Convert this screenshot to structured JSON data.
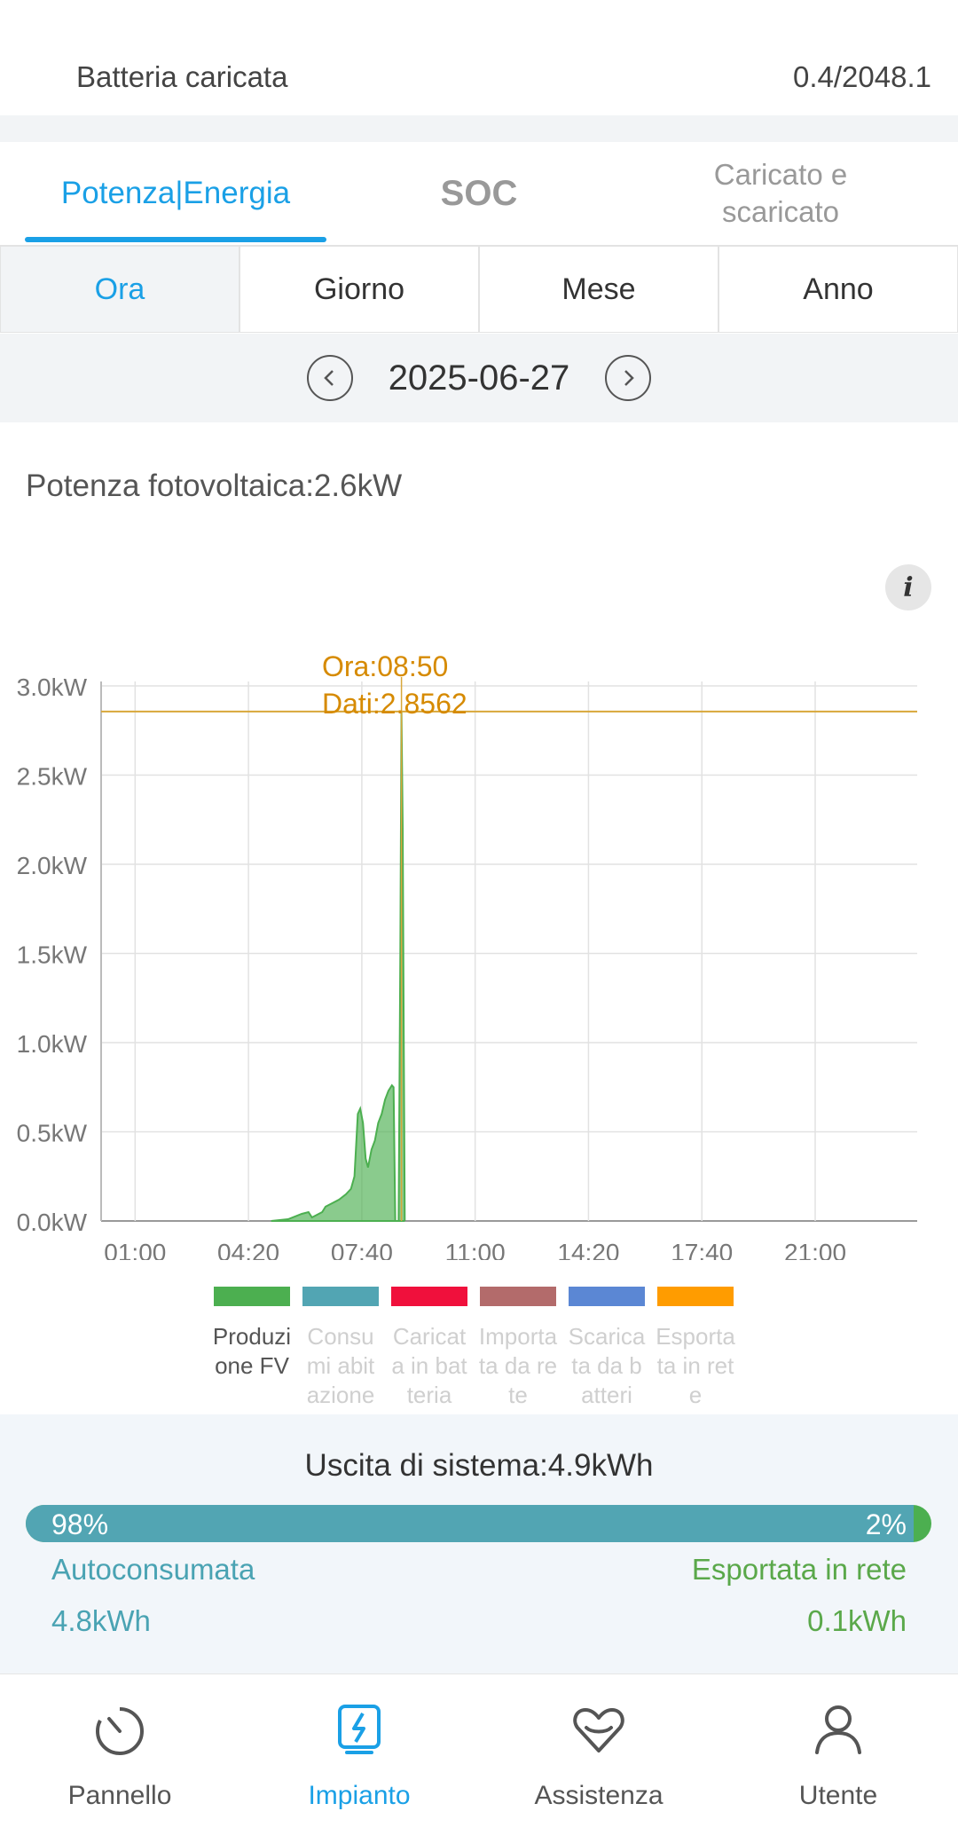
{
  "battery": {
    "label": "Batteria caricata",
    "value": "0.4/2048.1"
  },
  "tabs": [
    {
      "label": "Potenza|Energia",
      "active": true
    },
    {
      "label": "SOC",
      "active": false
    },
    {
      "label": "Caricato e scaricato",
      "active": false
    }
  ],
  "period_tabs": [
    {
      "label": "Ora",
      "active": true
    },
    {
      "label": "Giorno",
      "active": false
    },
    {
      "label": "Mese",
      "active": false
    },
    {
      "label": "Anno",
      "active": false
    }
  ],
  "date": {
    "value": "2025-06-27",
    "prev_icon": "chevron-left-icon",
    "next_icon": "chevron-right-icon"
  },
  "pv_power": "Potenza fotovoltaica:2.6kW",
  "info_icon": "i",
  "chart_data": {
    "type": "area",
    "y_tick_labels": [
      "0.0kW",
      "0.5kW",
      "1.0kW",
      "1.5kW",
      "2.0kW",
      "2.5kW",
      "3.0kW"
    ],
    "x_tick_labels": [
      "01:00",
      "04:20",
      "07:40",
      "11:00",
      "14:20",
      "17:40",
      "21:00"
    ],
    "ylim": [
      0,
      3.0
    ],
    "xlim_hours": [
      0,
      24
    ],
    "tooltip": {
      "line1": "Ora:08:50",
      "line2": "Dati:2.8562",
      "x_hour": 8.833,
      "y": 2.8562
    },
    "series": [
      {
        "name": "Produzione FV",
        "color": "#4caf50",
        "points": [
          [
            5.0,
            0.0
          ],
          [
            5.5,
            0.01
          ],
          [
            5.9,
            0.04
          ],
          [
            6.1,
            0.05
          ],
          [
            6.2,
            0.02
          ],
          [
            6.5,
            0.05
          ],
          [
            6.6,
            0.08
          ],
          [
            6.8,
            0.1
          ],
          [
            7.0,
            0.12
          ],
          [
            7.2,
            0.15
          ],
          [
            7.35,
            0.18
          ],
          [
            7.45,
            0.25
          ],
          [
            7.55,
            0.6
          ],
          [
            7.62,
            0.63
          ],
          [
            7.7,
            0.55
          ],
          [
            7.78,
            0.35
          ],
          [
            7.85,
            0.3
          ],
          [
            7.95,
            0.4
          ],
          [
            8.05,
            0.45
          ],
          [
            8.15,
            0.55
          ],
          [
            8.25,
            0.6
          ],
          [
            8.35,
            0.68
          ],
          [
            8.45,
            0.73
          ],
          [
            8.55,
            0.76
          ],
          [
            8.6,
            0.75
          ],
          [
            8.65,
            0.0
          ],
          [
            8.75,
            0.0
          ],
          [
            8.8,
            1.5
          ],
          [
            8.833,
            2.8562
          ],
          [
            8.87,
            2.2
          ],
          [
            8.9,
            1.0
          ],
          [
            8.93,
            0.0
          ]
        ]
      },
      {
        "name": "Consumi abitazione",
        "color": "#52a5b3",
        "points": []
      },
      {
        "name": "Carica ta in batteria",
        "color": "#f0103c",
        "points": []
      },
      {
        "name": "Importata da rete",
        "color": "#b36b6b",
        "points": []
      },
      {
        "name": "Scaricata da batteri",
        "color": "#5b87d4",
        "points": []
      },
      {
        "name": "Esportata in rete",
        "color": "#ff9c00",
        "points": []
      }
    ]
  },
  "legend": [
    {
      "text": "Produzione FV",
      "color": "#4caf50",
      "active": true
    },
    {
      "text": "Consumi abitazione",
      "color": "#52a5b3",
      "active": false
    },
    {
      "text": "Caricata in batteria",
      "color": "#f0103c",
      "active": false
    },
    {
      "text": "Importata da rete",
      "color": "#b36b6b",
      "active": false
    },
    {
      "text": "Scaricata da batteri",
      "color": "#5b87d4",
      "active": false
    },
    {
      "text": "Esportata in rete",
      "color": "#ff9c00",
      "active": false
    }
  ],
  "summary": {
    "system_output": "Uscita di sistema:4.9kWh",
    "self_pct_label": "98%",
    "export_pct_label": "2%",
    "self_fraction": 0.98,
    "self_label": "Autoconsumata",
    "self_value": "4.8kWh",
    "export_label": "Esportata in rete",
    "export_value": "0.1kWh"
  },
  "nav": [
    {
      "label": "Pannello",
      "icon": "gauge-icon",
      "active": false
    },
    {
      "label": "Impianto",
      "icon": "plant-bolt-icon",
      "active": true
    },
    {
      "label": "Assistenza",
      "icon": "heart-hand-icon",
      "active": false
    },
    {
      "label": "Utente",
      "icon": "user-icon",
      "active": false
    }
  ]
}
